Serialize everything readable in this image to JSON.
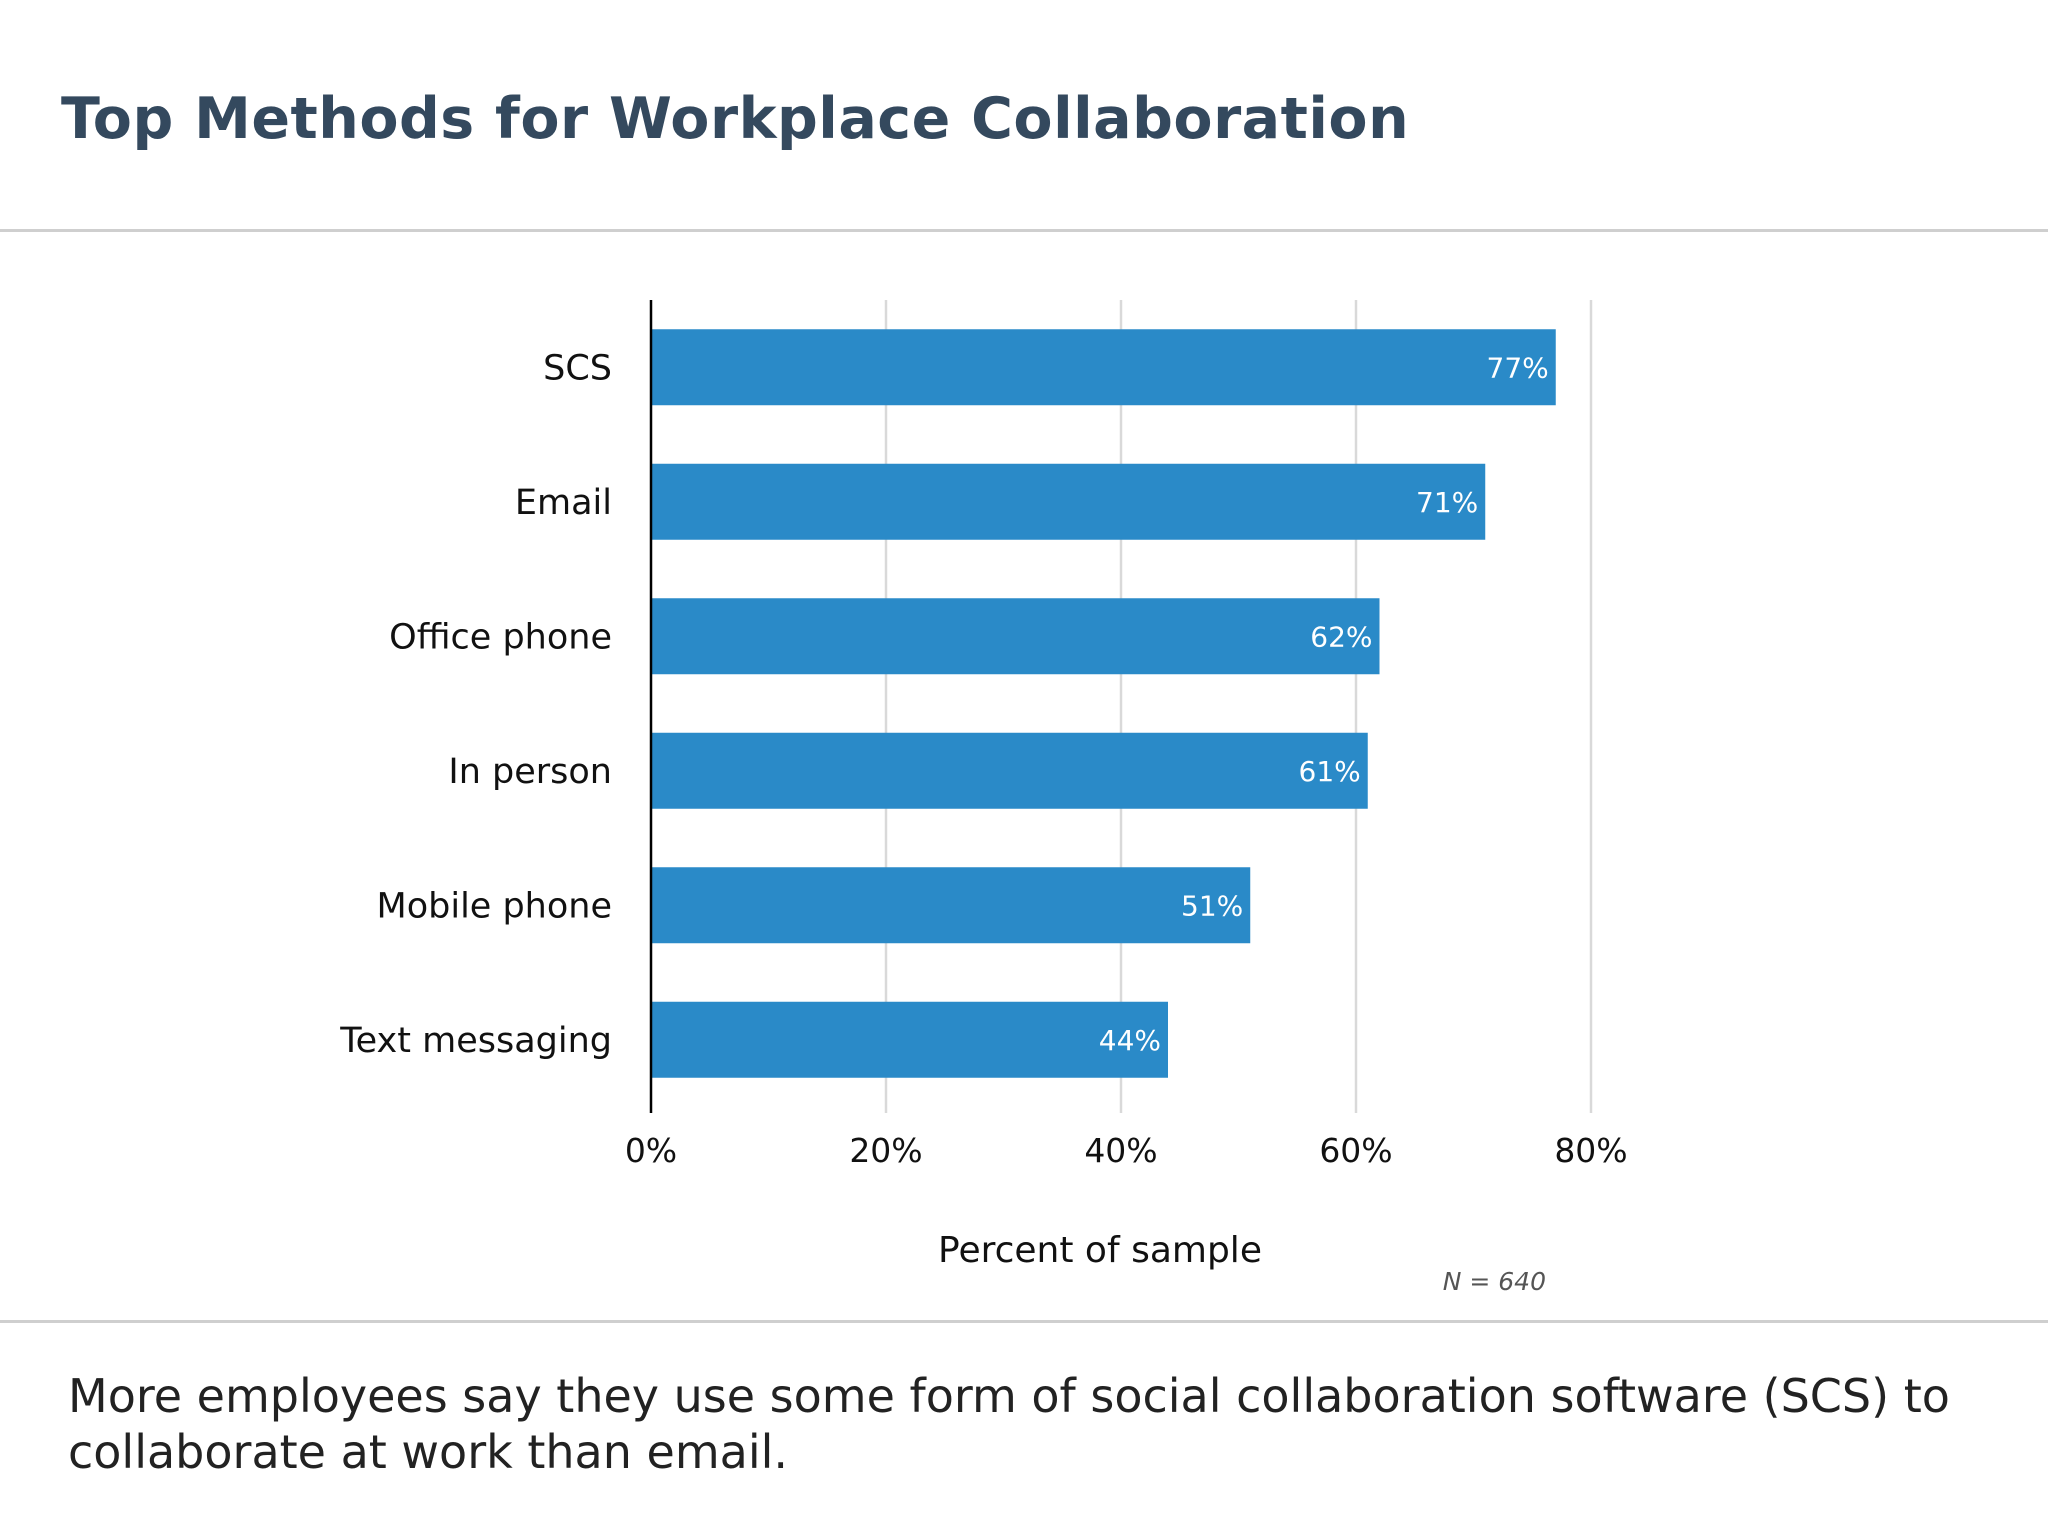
{
  "title": "Top Methods for Workplace Collaboration",
  "caption": "More employees say they use some form of social collaboration software (SCS) to collaborate at work than email.",
  "chart_data": {
    "type": "bar",
    "orientation": "horizontal",
    "categories": [
      "SCS",
      "Email",
      "Office phone",
      "In person",
      "Mobile phone",
      "Text messaging"
    ],
    "values": [
      77,
      71,
      62,
      61,
      51,
      44
    ],
    "data_labels": [
      "77%",
      "71%",
      "62%",
      "61%",
      "51%",
      "44%"
    ],
    "xlabel": "Percent of sample",
    "ylabel": "",
    "xlim": [
      0,
      80
    ],
    "x_ticks": [
      0,
      20,
      40,
      60,
      80
    ],
    "x_tick_labels": [
      "0%",
      "20%",
      "40%",
      "60%",
      "80%"
    ],
    "grid": "vertical",
    "note": "N = 640",
    "colors": {
      "bar": "#2a8ac8",
      "title": "#34495e",
      "grid": "#d9d9d9",
      "axis": "#000000",
      "note": "#555555",
      "bar_label": "#ffffff"
    }
  }
}
